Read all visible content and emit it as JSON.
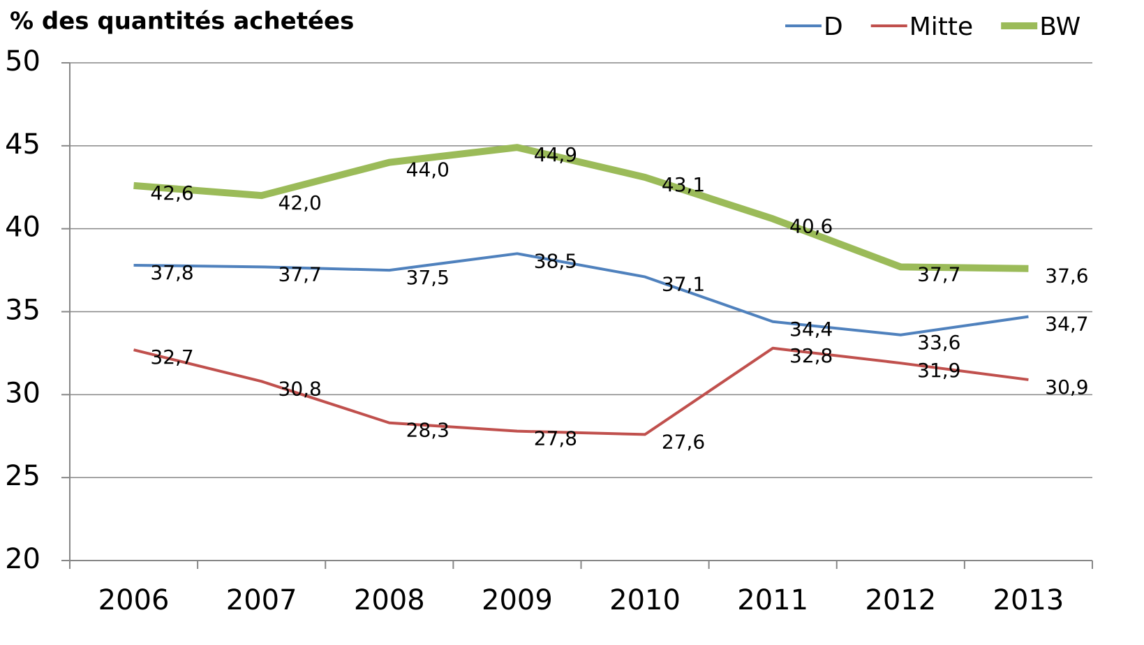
{
  "chart_data": {
    "type": "line",
    "title": "% des quantités achetées",
    "categories": [
      "2006",
      "2007",
      "2008",
      "2009",
      "2010",
      "2011",
      "2012",
      "2013"
    ],
    "series": [
      {
        "name": "D",
        "color": "#4f81bd",
        "values": [
          37.8,
          37.7,
          37.5,
          38.5,
          37.1,
          34.4,
          33.6,
          34.7
        ],
        "value_labels": [
          "37,8",
          "37,7",
          "37,5",
          "38,5",
          "37,1",
          "34,4",
          "33,6",
          "34,7"
        ]
      },
      {
        "name": "Mitte",
        "color": "#c0504d",
        "values": [
          32.7,
          30.8,
          28.3,
          27.8,
          27.6,
          32.8,
          31.9,
          30.9
        ],
        "value_labels": [
          "32,7",
          "30,8",
          "28,3",
          "27,8",
          "27,6",
          "32,8",
          "31,9",
          "30,9"
        ]
      },
      {
        "name": "BW",
        "color": "#9bbb59",
        "values": [
          42.6,
          42.0,
          44.0,
          44.9,
          43.1,
          40.6,
          37.7,
          37.6
        ],
        "value_labels": [
          "42,6",
          "42,0",
          "44,0",
          "44,9",
          "43,1",
          "40,6",
          "37,7",
          "37,6"
        ]
      }
    ],
    "ylim": [
      20,
      50
    ],
    "yticks": [
      20,
      25,
      30,
      35,
      40,
      45,
      50
    ],
    "grid": true,
    "legend": "top-right"
  }
}
